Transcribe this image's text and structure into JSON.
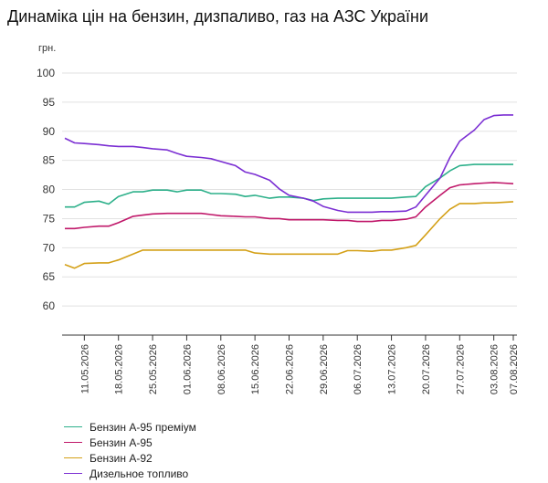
{
  "title": "Динаміка цін на бензин, дизпаливо, газ на АЗС України",
  "chart_data": {
    "type": "line",
    "unit_label": "грн.",
    "ylim": [
      55,
      100
    ],
    "yticks": [
      60,
      65,
      70,
      75,
      80,
      85,
      90,
      95,
      100
    ],
    "grid": "horizontal",
    "legend_position": "bottom-left",
    "x": [
      "2026-05-07",
      "2026-05-09",
      "2026-05-11",
      "2026-05-14",
      "2026-05-16",
      "2026-05-18",
      "2026-05-21",
      "2026-05-23",
      "2026-05-25",
      "2026-05-28",
      "2026-05-30",
      "2026-06-01",
      "2026-06-04",
      "2026-06-06",
      "2026-06-08",
      "2026-06-11",
      "2026-06-13",
      "2026-06-15",
      "2026-06-18",
      "2026-06-20",
      "2026-06-22",
      "2026-06-25",
      "2026-06-27",
      "2026-06-29",
      "2026-07-02",
      "2026-07-04",
      "2026-07-06",
      "2026-07-09",
      "2026-07-11",
      "2026-07-13",
      "2026-07-16",
      "2026-07-18",
      "2026-07-20",
      "2026-07-23",
      "2026-07-25",
      "2026-07-27",
      "2026-07-30",
      "2026-08-01",
      "2026-08-03",
      "2026-08-05",
      "2026-08-07"
    ],
    "xticks": [
      "11.05.2026",
      "18.05.2026",
      "25.05.2026",
      "01.06.2026",
      "08.06.2026",
      "15.06.2026",
      "22.06.2026",
      "29.06.2026",
      "06.07.2026",
      "13.07.2026",
      "20.07.2026",
      "27.07.2026",
      "03.08.2026",
      "07.08.2026"
    ],
    "series": [
      {
        "name": "Бензин А-95 преміум",
        "color": "#2db08a",
        "values": [
          77.0,
          77.0,
          77.8,
          78.0,
          77.5,
          78.8,
          79.6,
          79.6,
          79.9,
          79.9,
          79.6,
          79.9,
          79.9,
          79.3,
          79.3,
          79.2,
          78.8,
          79.0,
          78.5,
          78.7,
          78.7,
          78.5,
          78.1,
          78.4,
          78.5,
          78.5,
          78.5,
          78.5,
          78.5,
          78.5,
          78.7,
          78.8,
          80.5,
          82.0,
          83.2,
          84.1,
          84.3,
          84.3,
          84.3,
          84.3,
          84.3
        ]
      },
      {
        "name": "Бензин А-95",
        "color": "#c0186a",
        "values": [
          73.3,
          73.3,
          73.5,
          73.7,
          73.7,
          74.3,
          75.4,
          75.6,
          75.8,
          75.9,
          75.9,
          75.9,
          75.9,
          75.7,
          75.5,
          75.4,
          75.3,
          75.3,
          75.0,
          75.0,
          74.8,
          74.8,
          74.8,
          74.8,
          74.7,
          74.7,
          74.5,
          74.5,
          74.7,
          74.7,
          74.9,
          75.3,
          77.0,
          79.0,
          80.3,
          80.8,
          81.0,
          81.1,
          81.2,
          81.1,
          81.0
        ]
      },
      {
        "name": "Бензин А-92",
        "color": "#d4a017",
        "values": [
          67.1,
          66.5,
          67.3,
          67.4,
          67.4,
          67.9,
          68.9,
          69.6,
          69.6,
          69.6,
          69.6,
          69.6,
          69.6,
          69.6,
          69.6,
          69.6,
          69.6,
          69.1,
          68.9,
          68.9,
          68.9,
          68.9,
          68.9,
          68.9,
          68.9,
          69.5,
          69.5,
          69.4,
          69.6,
          69.6,
          70.0,
          70.4,
          72.2,
          75.0,
          76.6,
          77.6,
          77.6,
          77.7,
          77.7,
          77.8,
          77.9
        ]
      },
      {
        "name": "Дизельное топливо",
        "color": "#7b2fd3",
        "values": [
          88.8,
          88.0,
          87.9,
          87.7,
          87.5,
          87.4,
          87.4,
          87.2,
          87.0,
          86.8,
          86.2,
          85.7,
          85.5,
          85.3,
          84.8,
          84.1,
          83.0,
          82.6,
          81.6,
          80.1,
          79.0,
          78.5,
          78.0,
          77.1,
          76.4,
          76.1,
          76.1,
          76.1,
          76.2,
          76.2,
          76.3,
          77.0,
          79.0,
          82.0,
          85.5,
          88.3,
          90.2,
          92.0,
          92.7,
          92.8,
          92.8
        ]
      }
    ]
  }
}
